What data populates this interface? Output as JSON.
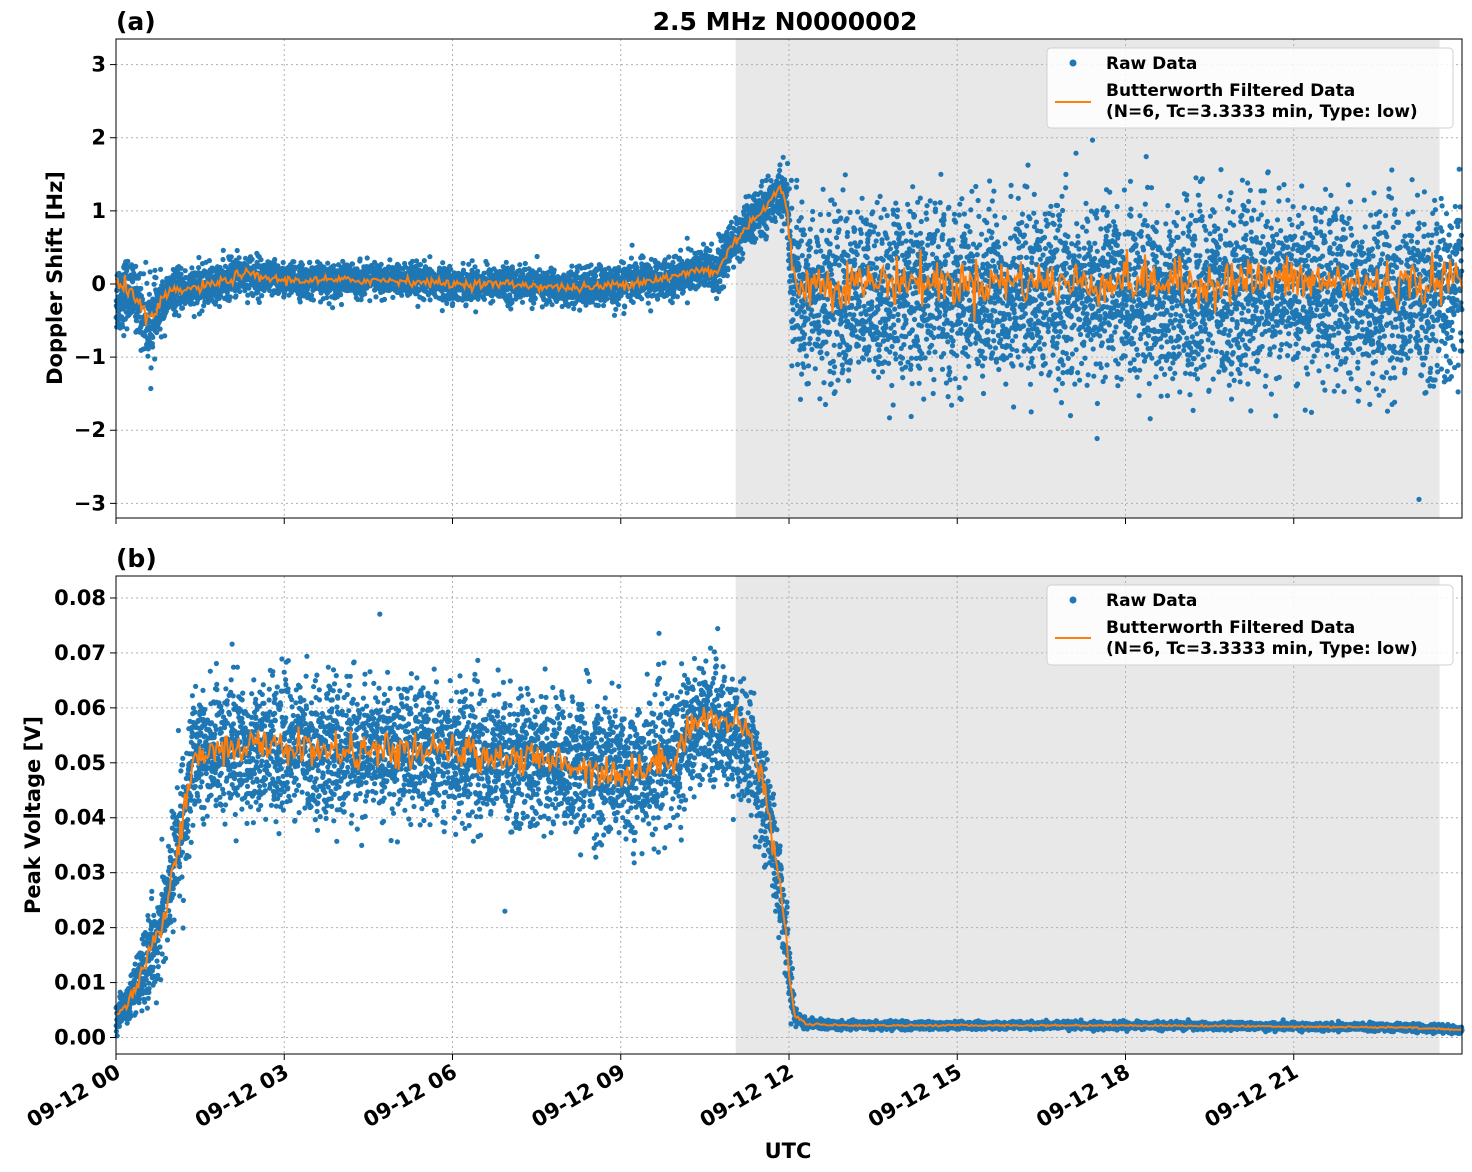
{
  "figure": {
    "title": "2.5 MHz N0000002",
    "xlabel": "UTC",
    "colors": {
      "raw": "#1f77b4",
      "filtered": "#ff7f0e",
      "shade": "#e8e8e8",
      "grid": "#b0b0b0"
    }
  },
  "chart_data": [
    {
      "type": "scatter",
      "panel_label": "(a)",
      "title": "2.5 MHz N0000002",
      "xlabel": "",
      "ylabel": "Doppler Shift [Hz]",
      "xlim_hours": [
        0,
        24
      ],
      "ylim": [
        -3.2,
        3.35
      ],
      "x_ticks": [
        0,
        3,
        6,
        9,
        12,
        15,
        18,
        21
      ],
      "x_tick_labels": [
        "09-12 00",
        "09-12 03",
        "09-12 06",
        "09-12 09",
        "09-12 12",
        "09-12 15",
        "09-12 18",
        "09-12 21"
      ],
      "y_ticks": [
        -3,
        -2,
        -1,
        0,
        1,
        2,
        3
      ],
      "y_tick_labels": [
        "−3",
        "−2",
        "−1",
        "0",
        "1",
        "2",
        "3"
      ],
      "grid": true,
      "shaded_region_hours": [
        11.05,
        23.6
      ],
      "legend": {
        "position": "top-right",
        "entries": [
          "Raw Data",
          "Butterworth Filtered Data",
          "(N=6, Tc=3.3333 min, Type: low)"
        ]
      },
      "series": [
        {
          "name": "Raw Data",
          "kind": "scatter",
          "x_hours": [
            0.0,
            0.1,
            0.2,
            0.3,
            0.4,
            0.5,
            0.6,
            0.8,
            1.0,
            1.5,
            2.0,
            2.25,
            2.5,
            3.0,
            3.5,
            4.0,
            5.0,
            6.0,
            7.0,
            8.0,
            8.5,
            9.0,
            9.5,
            10.0,
            10.4,
            10.7,
            11.0,
            11.3,
            11.6,
            11.8,
            11.95,
            12.05,
            12.2,
            12.5,
            13.0,
            14.0,
            15.0,
            16.0,
            17.0,
            18.0,
            19.0,
            20.0,
            21.0,
            22.0,
            23.0,
            24.0
          ],
          "y_center": [
            -0.2,
            -0.15,
            -0.1,
            -0.15,
            -0.25,
            -0.45,
            -0.55,
            -0.3,
            -0.1,
            -0.05,
            0.05,
            0.15,
            0.1,
            0.05,
            0.05,
            0.05,
            0.05,
            0.0,
            0.0,
            -0.05,
            -0.05,
            0.0,
            0.05,
            0.1,
            0.2,
            0.15,
            0.55,
            0.85,
            1.05,
            1.25,
            1.2,
            0.1,
            -0.15,
            -0.15,
            -0.15,
            -0.1,
            -0.15,
            -0.1,
            -0.15,
            -0.1,
            -0.15,
            -0.1,
            -0.1,
            -0.15,
            -0.15,
            -0.1
          ],
          "y_spread": [
            0.55,
            0.55,
            0.5,
            0.4,
            0.5,
            0.6,
            0.6,
            0.4,
            0.3,
            0.3,
            0.3,
            0.3,
            0.3,
            0.25,
            0.25,
            0.25,
            0.25,
            0.25,
            0.25,
            0.25,
            0.3,
            0.3,
            0.3,
            0.3,
            0.35,
            0.35,
            0.35,
            0.35,
            0.35,
            0.35,
            0.45,
            1.1,
            1.25,
            1.3,
            1.3,
            1.3,
            1.3,
            1.3,
            1.3,
            1.3,
            1.3,
            1.3,
            1.3,
            1.3,
            1.3,
            1.3
          ]
        },
        {
          "name": "Butterworth Filtered Data",
          "kind": "line",
          "x_hours": [
            0.0,
            0.1,
            0.2,
            0.3,
            0.4,
            0.5,
            0.6,
            0.8,
            1.0,
            1.5,
            2.0,
            2.25,
            2.5,
            3.0,
            3.5,
            4.0,
            5.0,
            6.0,
            7.0,
            8.0,
            8.5,
            9.0,
            9.5,
            10.0,
            10.4,
            10.7,
            11.0,
            11.3,
            11.6,
            11.8,
            11.95,
            12.05,
            12.2,
            12.5,
            13.0,
            14.0,
            15.0,
            16.0,
            17.0,
            18.0,
            19.0,
            20.0,
            21.0,
            22.0,
            23.0,
            24.0
          ],
          "y": [
            -0.05,
            -0.05,
            -0.05,
            -0.1,
            -0.2,
            -0.45,
            -0.55,
            -0.25,
            -0.1,
            -0.05,
            0.05,
            0.15,
            0.1,
            0.05,
            0.05,
            0.05,
            0.05,
            0.0,
            0.0,
            -0.05,
            -0.05,
            0.0,
            0.05,
            0.1,
            0.2,
            0.15,
            0.55,
            0.85,
            1.05,
            1.3,
            1.15,
            0.2,
            0.0,
            0.0,
            0.0,
            0.05,
            0.0,
            0.05,
            0.0,
            0.05,
            0.0,
            0.05,
            0.05,
            0.0,
            0.0,
            0.05
          ]
        }
      ]
    },
    {
      "type": "scatter",
      "panel_label": "(b)",
      "xlabel": "UTC",
      "ylabel": "Peak Voltage [V]",
      "xlim_hours": [
        0,
        24
      ],
      "ylim": [
        -0.003,
        0.084
      ],
      "x_ticks": [
        0,
        3,
        6,
        9,
        12,
        15,
        18,
        21
      ],
      "x_tick_labels": [
        "09-12 00",
        "09-12 03",
        "09-12 06",
        "09-12 09",
        "09-12 12",
        "09-12 15",
        "09-12 18",
        "09-12 21"
      ],
      "y_ticks": [
        0.0,
        0.01,
        0.02,
        0.03,
        0.04,
        0.05,
        0.06,
        0.07,
        0.08
      ],
      "y_tick_labels": [
        "0.00",
        "0.01",
        "0.02",
        "0.03",
        "0.04",
        "0.05",
        "0.06",
        "0.07",
        "0.08"
      ],
      "grid": true,
      "shaded_region_hours": [
        11.05,
        23.6
      ],
      "legend": {
        "position": "top-right",
        "entries": [
          "Raw Data",
          "Butterworth Filtered Data",
          "(N=6, Tc=3.3333 min, Type: low)"
        ]
      },
      "series": [
        {
          "name": "Raw Data",
          "kind": "scatter",
          "x_hours": [
            0.0,
            0.2,
            0.4,
            0.6,
            0.8,
            1.0,
            1.2,
            1.4,
            1.7,
            2.0,
            3.0,
            4.0,
            5.0,
            6.0,
            7.0,
            8.0,
            8.5,
            9.0,
            9.5,
            10.0,
            10.3,
            10.6,
            11.0,
            11.3,
            11.6,
            11.8,
            11.95,
            12.05,
            12.1,
            12.3,
            13.0,
            15.0,
            18.0,
            21.0,
            23.0,
            24.0
          ],
          "y_center": [
            0.004,
            0.006,
            0.01,
            0.015,
            0.02,
            0.03,
            0.04,
            0.05,
            0.053,
            0.053,
            0.053,
            0.052,
            0.052,
            0.052,
            0.051,
            0.05,
            0.049,
            0.048,
            0.049,
            0.052,
            0.057,
            0.058,
            0.055,
            0.052,
            0.042,
            0.03,
            0.018,
            0.008,
            0.004,
            0.0025,
            0.0022,
            0.0022,
            0.0022,
            0.002,
            0.0018,
            0.0014
          ],
          "y_spread": [
            0.003,
            0.004,
            0.006,
            0.008,
            0.01,
            0.012,
            0.013,
            0.013,
            0.013,
            0.013,
            0.013,
            0.013,
            0.013,
            0.013,
            0.013,
            0.013,
            0.014,
            0.014,
            0.014,
            0.013,
            0.013,
            0.012,
            0.011,
            0.012,
            0.012,
            0.01,
            0.008,
            0.005,
            0.002,
            0.001,
            0.0007,
            0.0007,
            0.0007,
            0.0007,
            0.0007,
            0.0007
          ]
        },
        {
          "name": "Butterworth Filtered Data",
          "kind": "line",
          "x_hours": [
            0.0,
            0.2,
            0.4,
            0.6,
            0.8,
            1.0,
            1.2,
            1.4,
            1.7,
            2.0,
            3.0,
            4.0,
            5.0,
            6.0,
            7.0,
            8.0,
            8.5,
            9.0,
            9.5,
            10.0,
            10.3,
            10.6,
            11.0,
            11.3,
            11.6,
            11.8,
            11.95,
            12.05,
            12.1,
            12.3,
            13.0,
            15.0,
            18.0,
            21.0,
            23.0,
            24.0
          ],
          "y": [
            0.004,
            0.006,
            0.01,
            0.015,
            0.02,
            0.03,
            0.04,
            0.05,
            0.053,
            0.053,
            0.053,
            0.052,
            0.052,
            0.052,
            0.051,
            0.05,
            0.049,
            0.048,
            0.049,
            0.052,
            0.058,
            0.058,
            0.057,
            0.056,
            0.043,
            0.03,
            0.018,
            0.008,
            0.004,
            0.0025,
            0.0022,
            0.0022,
            0.0022,
            0.002,
            0.0018,
            0.0014
          ]
        }
      ]
    }
  ]
}
